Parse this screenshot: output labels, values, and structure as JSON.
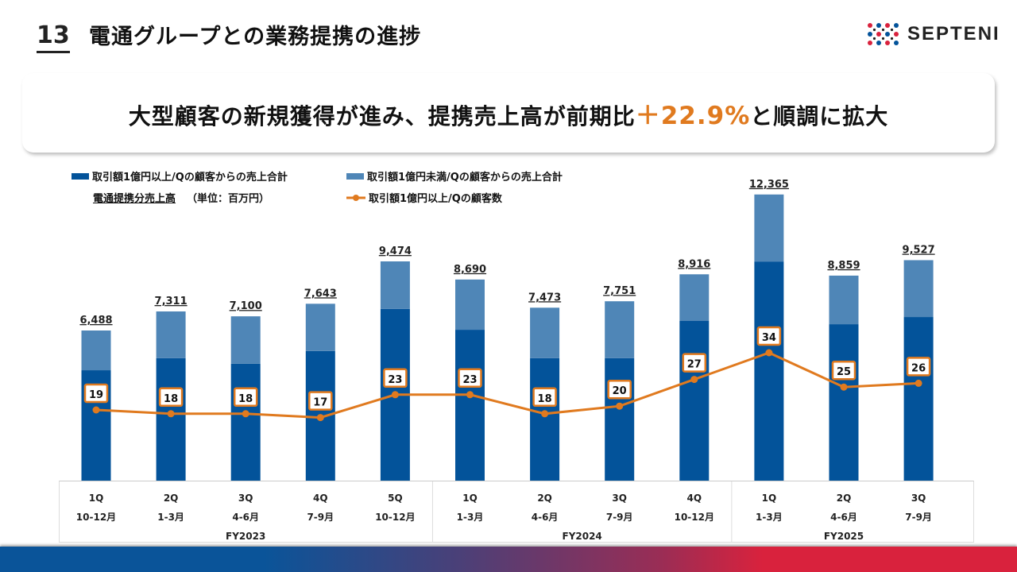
{
  "header": {
    "page_number": "13",
    "title": "電通グループとの業務提携の進捗",
    "logo_text": "SEPTENI"
  },
  "banner": {
    "text_before": "大型顧客の新規獲得が進み、提携売上高が前期比",
    "highlight": "＋22.9%",
    "text_after": "と順調に拡大",
    "highlight_color": "#e07a1f"
  },
  "legend": {
    "dark": "取引額1億円以上/Qの顧客からの売上合計",
    "light": "取引額1億円未満/Qの顧客からの売上合計",
    "total_label": "電通提携分売上高",
    "unit": "（単位：百万円）",
    "line": "取引額1億円以上/Qの顧客数"
  },
  "colors": {
    "dark_bar": "#03539a",
    "light_bar": "#4f86b7",
    "line": "#e07a1f"
  },
  "chart_data": {
    "type": "bar",
    "stacked": true,
    "title": "電通グループとの業務提携の進捗",
    "ylabel": "（単位：百万円）",
    "categories": [
      {
        "q": "1Q",
        "months": "10-12月",
        "fy": "FY2023"
      },
      {
        "q": "2Q",
        "months": "1-3月",
        "fy": "FY2023"
      },
      {
        "q": "3Q",
        "months": "4-6月",
        "fy": "FY2023"
      },
      {
        "q": "4Q",
        "months": "7-9月",
        "fy": "FY2023"
      },
      {
        "q": "5Q",
        "months": "10-12月",
        "fy": "FY2023"
      },
      {
        "q": "1Q",
        "months": "1-3月",
        "fy": "FY2024"
      },
      {
        "q": "2Q",
        "months": "4-6月",
        "fy": "FY2024"
      },
      {
        "q": "3Q",
        "months": "7-9月",
        "fy": "FY2024"
      },
      {
        "q": "4Q",
        "months": "10-12月",
        "fy": "FY2024"
      },
      {
        "q": "1Q",
        "months": "1-3月",
        "fy": "FY2025"
      },
      {
        "q": "2Q",
        "months": "4-6月",
        "fy": "FY2025"
      },
      {
        "q": "3Q",
        "months": "7-9月",
        "fy": "FY2025"
      }
    ],
    "fiscal_years": [
      "FY2023",
      "FY2024",
      "FY2025"
    ],
    "totals": [
      6488,
      7311,
      7100,
      7643,
      9474,
      8690,
      7473,
      7751,
      8916,
      12365,
      8859,
      9527
    ],
    "total_labels": [
      "6,488",
      "7,311",
      "7,100",
      "7,643",
      "9,474",
      "8,690",
      "7,473",
      "7,751",
      "8,916",
      "12,365",
      "8,859",
      "9,527"
    ],
    "series": [
      {
        "name": "取引額1億円以上/Qの顧客からの売上合計",
        "type": "bar",
        "values": [
          4770,
          5290,
          5050,
          5600,
          7420,
          6520,
          5290,
          5290,
          6900,
          9470,
          6760,
          7070
        ]
      },
      {
        "name": "取引額1億円未満/Qの顧客からの売上合計",
        "type": "bar",
        "values": [
          1718,
          2021,
          2050,
          2043,
          2054,
          2170,
          2183,
          2461,
          2016,
          2895,
          2099,
          2457
        ]
      },
      {
        "name": "取引額1億円以上/Qの顧客数",
        "type": "line",
        "values": [
          19,
          18,
          18,
          17,
          23,
          23,
          18,
          20,
          27,
          34,
          25,
          26
        ]
      }
    ],
    "ylim": [
      0,
      12365
    ],
    "grid": false,
    "legend_position": "top-left"
  }
}
